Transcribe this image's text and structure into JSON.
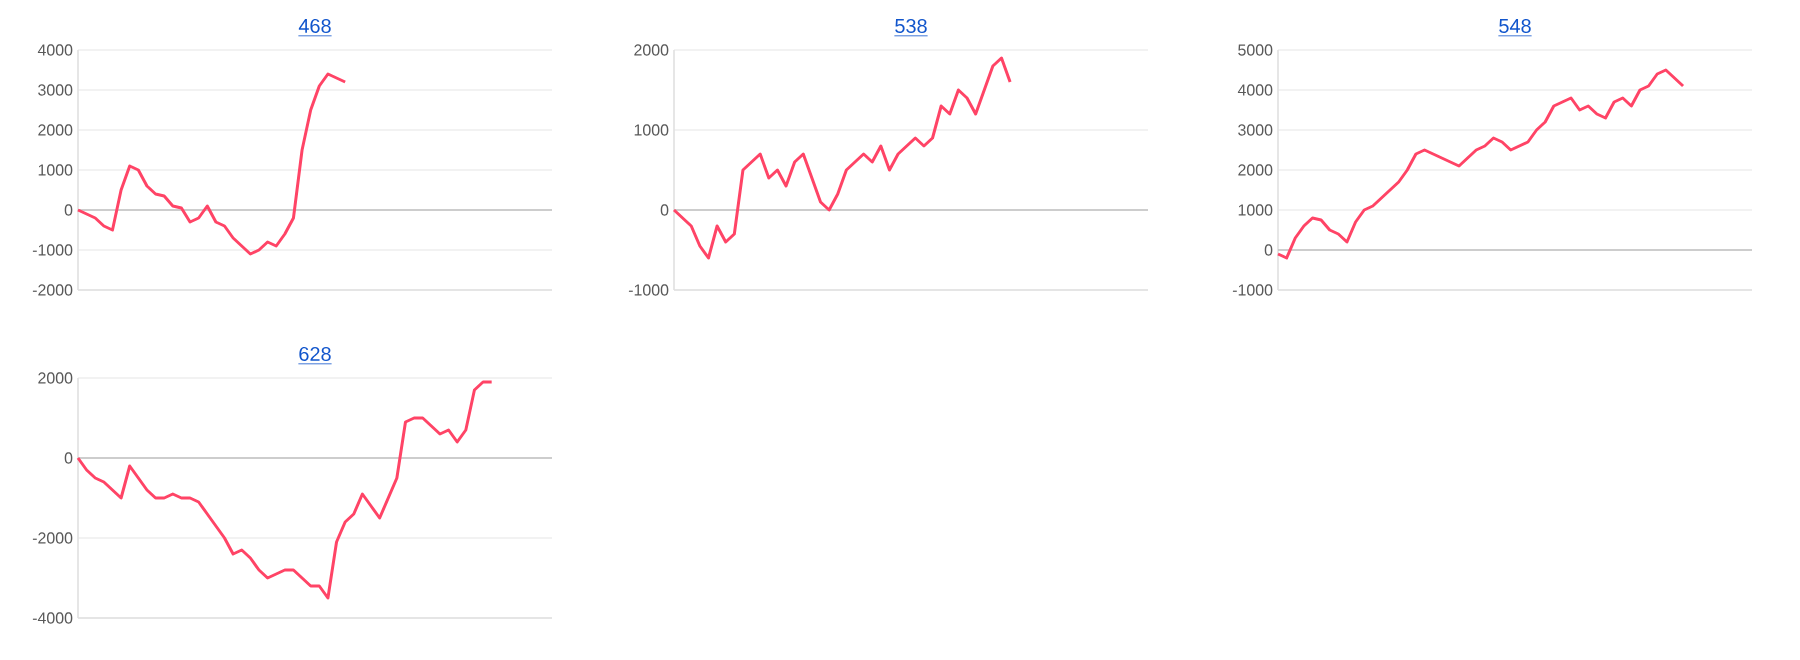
{
  "chart_data": [
    {
      "type": "line",
      "title": "468",
      "categories": [
        null,
        null,
        null,
        null,
        null,
        null,
        null,
        null,
        null,
        null,
        null,
        null,
        null,
        null,
        null,
        null,
        null,
        null,
        null,
        null,
        null,
        null,
        null,
        null,
        null,
        null,
        null,
        null,
        null,
        null,
        null,
        null,
        null,
        null,
        null,
        null,
        null,
        null,
        null,
        null,
        null,
        null,
        null,
        null,
        null,
        null,
        null,
        null,
        null,
        null,
        null,
        null,
        null,
        null,
        null,
        null
      ],
      "series": [
        {
          "color": "#ff4466",
          "values": [
            0,
            -100,
            -200,
            -400,
            -500,
            500,
            1100,
            1000,
            600,
            400,
            350,
            100,
            50,
            -300,
            -200,
            100,
            -300,
            -400,
            -700,
            -900,
            -1100,
            -1000,
            -800,
            -900,
            -600,
            -200,
            1500,
            2500,
            3100,
            3400,
            3300,
            3200,
            null,
            null,
            null,
            null,
            null,
            null,
            null,
            null,
            null,
            null,
            null,
            null,
            null,
            null,
            null,
            null,
            null,
            null,
            null,
            null,
            null,
            null,
            null,
            null
          ]
        }
      ],
      "ylim": [
        -2000,
        4000
      ],
      "yticks": [
        -2000,
        -1000,
        0,
        1000,
        2000,
        3000,
        4000
      ],
      "grid": "y",
      "tick_labels": "y",
      "marker": "none",
      "line_style": "solid",
      "ref_lines": [
        {
          "axis": "y",
          "value": 0,
          "color": "#c0c0c0"
        }
      ]
    },
    {
      "type": "line",
      "title": "538",
      "categories": [
        null,
        null,
        null,
        null,
        null,
        null,
        null,
        null,
        null,
        null,
        null,
        null,
        null,
        null,
        null,
        null,
        null,
        null,
        null,
        null,
        null,
        null,
        null,
        null,
        null,
        null,
        null,
        null,
        null,
        null,
        null,
        null,
        null,
        null,
        null,
        null,
        null,
        null,
        null,
        null,
        null,
        null,
        null,
        null,
        null,
        null,
        null,
        null,
        null,
        null,
        null,
        null,
        null,
        null,
        null,
        null
      ],
      "series": [
        {
          "color": "#ff4466",
          "values": [
            0,
            -100,
            -200,
            -450,
            -600,
            -200,
            -400,
            -300,
            500,
            600,
            700,
            400,
            500,
            300,
            600,
            700,
            400,
            100,
            0,
            200,
            500,
            600,
            700,
            600,
            800,
            500,
            700,
            800,
            900,
            800,
            900,
            1300,
            1200,
            1500,
            1400,
            1200,
            1500,
            1800,
            1900,
            1600,
            null,
            null,
            null,
            null,
            null,
            null,
            null,
            null,
            null,
            null,
            null,
            null,
            null,
            null,
            null,
            null
          ]
        }
      ],
      "ylim": [
        -1000,
        2000
      ],
      "yticks": [
        -1000,
        0,
        1000,
        2000
      ],
      "grid": "y",
      "tick_labels": "y",
      "marker": "none",
      "line_style": "solid",
      "ref_lines": [
        {
          "axis": "y",
          "value": 0,
          "color": "#c0c0c0"
        }
      ]
    },
    {
      "type": "line",
      "title": "548",
      "categories": [
        null,
        null,
        null,
        null,
        null,
        null,
        null,
        null,
        null,
        null,
        null,
        null,
        null,
        null,
        null,
        null,
        null,
        null,
        null,
        null,
        null,
        null,
        null,
        null,
        null,
        null,
        null,
        null,
        null,
        null,
        null,
        null,
        null,
        null,
        null,
        null,
        null,
        null,
        null,
        null,
        null,
        null,
        null,
        null,
        null,
        null,
        null,
        null,
        null,
        null,
        null,
        null,
        null,
        null,
        null,
        null
      ],
      "series": [
        {
          "color": "#ff4466",
          "values": [
            -100,
            -200,
            300,
            600,
            800,
            750,
            500,
            400,
            200,
            700,
            1000,
            1100,
            1300,
            1500,
            1700,
            2000,
            2400,
            2500,
            2400,
            2300,
            2200,
            2100,
            2300,
            2500,
            2600,
            2800,
            2700,
            2500,
            2600,
            2700,
            3000,
            3200,
            3600,
            3700,
            3800,
            3500,
            3600,
            3400,
            3300,
            3700,
            3800,
            3600,
            4000,
            4100,
            4400,
            4500,
            4300,
            4100,
            null,
            null,
            null,
            null,
            null,
            null,
            null,
            null
          ]
        }
      ],
      "ylim": [
        -1000,
        5000
      ],
      "yticks": [
        -1000,
        0,
        1000,
        2000,
        3000,
        4000,
        5000
      ],
      "grid": "y",
      "tick_labels": "y",
      "marker": "none",
      "line_style": "solid",
      "ref_lines": [
        {
          "axis": "y",
          "value": 0,
          "color": "#c0c0c0"
        }
      ]
    },
    {
      "type": "line",
      "title": "628",
      "categories": [
        null,
        null,
        null,
        null,
        null,
        null,
        null,
        null,
        null,
        null,
        null,
        null,
        null,
        null,
        null,
        null,
        null,
        null,
        null,
        null,
        null,
        null,
        null,
        null,
        null,
        null,
        null,
        null,
        null,
        null,
        null,
        null,
        null,
        null,
        null,
        null,
        null,
        null,
        null,
        null,
        null,
        null,
        null,
        null,
        null,
        null,
        null,
        null,
        null,
        null,
        null,
        null,
        null,
        null,
        null,
        null
      ],
      "series": [
        {
          "color": "#ff4466",
          "values": [
            0,
            -300,
            -500,
            -600,
            -800,
            -1000,
            -200,
            -500,
            -800,
            -1000,
            -1000,
            -900,
            -1000,
            -1000,
            -1100,
            -1400,
            -1700,
            -2000,
            -2400,
            -2300,
            -2500,
            -2800,
            -3000,
            -2900,
            -2800,
            -2800,
            -3000,
            -3200,
            -3200,
            -3500,
            -2100,
            -1600,
            -1400,
            -900,
            -1200,
            -1500,
            -1000,
            -500,
            900,
            1000,
            1000,
            800,
            600,
            700,
            400,
            700,
            1700,
            1900,
            1900,
            null,
            null,
            null,
            null,
            null,
            null,
            null
          ]
        }
      ],
      "ylim": [
        -4000,
        2000
      ],
      "yticks": [
        -4000,
        -2000,
        0,
        2000
      ],
      "grid": "y",
      "tick_labels": "y",
      "marker": "none",
      "line_style": "solid",
      "ref_lines": [
        {
          "axis": "y",
          "value": 0,
          "color": "#c0c0c0"
        }
      ]
    }
  ]
}
